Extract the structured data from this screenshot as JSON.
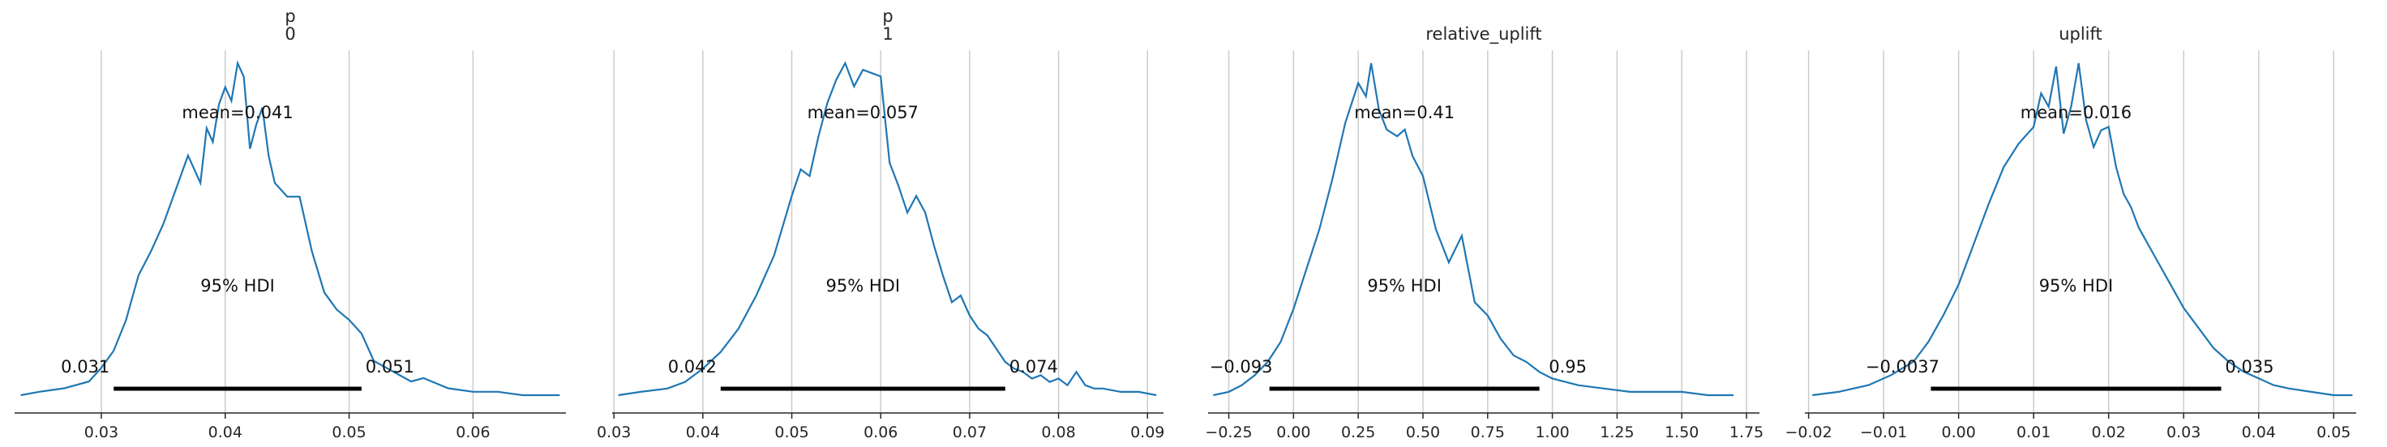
{
  "chart_data": [
    {
      "type": "area",
      "title_lines": [
        "p",
        "0"
      ],
      "xlim": [
        0.023,
        0.0675
      ],
      "xticks": [
        0.03,
        0.04,
        0.05,
        0.06
      ],
      "xtick_labels": [
        "0.03",
        "0.04",
        "0.05",
        "0.06"
      ],
      "mean_label": "mean=0.041",
      "hdi_label": "95% HDI",
      "hdi": [
        0.031,
        0.051
      ],
      "hdi_low_label": "0.031",
      "hdi_high_label": "0.051",
      "x": [
        0.0235,
        0.025,
        0.027,
        0.029,
        0.03,
        0.031,
        0.032,
        0.033,
        0.034,
        0.035,
        0.036,
        0.037,
        0.038,
        0.0385,
        0.039,
        0.0395,
        0.04,
        0.0405,
        0.041,
        0.0415,
        0.042,
        0.0425,
        0.043,
        0.0435,
        0.044,
        0.045,
        0.046,
        0.047,
        0.048,
        0.049,
        0.05,
        0.051,
        0.052,
        0.053,
        0.054,
        0.055,
        0.056,
        0.058,
        0.06,
        0.062,
        0.064,
        0.066,
        0.067
      ],
      "y": [
        0.0,
        0.01,
        0.02,
        0.04,
        0.08,
        0.13,
        0.22,
        0.35,
        0.42,
        0.5,
        0.6,
        0.7,
        0.62,
        0.78,
        0.74,
        0.85,
        0.9,
        0.86,
        0.97,
        0.93,
        0.72,
        0.79,
        0.84,
        0.7,
        0.62,
        0.58,
        0.58,
        0.42,
        0.3,
        0.25,
        0.22,
        0.18,
        0.1,
        0.08,
        0.06,
        0.04,
        0.05,
        0.02,
        0.01,
        0.01,
        0.0,
        0.0,
        0.0
      ]
    },
    {
      "type": "area",
      "title_lines": [
        "p",
        "1"
      ],
      "xlim": [
        0.0298,
        0.0918
      ],
      "xticks": [
        0.03,
        0.04,
        0.05,
        0.06,
        0.07,
        0.08,
        0.09
      ],
      "xtick_labels": [
        "0.03",
        "0.04",
        "0.05",
        "0.06",
        "0.07",
        "0.08",
        "0.09"
      ],
      "mean_label": "mean=0.057",
      "hdi_label": "95% HDI",
      "hdi": [
        0.042,
        0.074
      ],
      "hdi_low_label": "0.042",
      "hdi_high_label": "0.074",
      "x": [
        0.0305,
        0.033,
        0.036,
        0.038,
        0.04,
        0.042,
        0.044,
        0.046,
        0.048,
        0.05,
        0.051,
        0.052,
        0.053,
        0.054,
        0.055,
        0.056,
        0.057,
        0.058,
        0.059,
        0.06,
        0.061,
        0.062,
        0.063,
        0.064,
        0.065,
        0.066,
        0.067,
        0.068,
        0.069,
        0.07,
        0.071,
        0.072,
        0.073,
        0.074,
        0.075,
        0.076,
        0.077,
        0.078,
        0.079,
        0.08,
        0.081,
        0.082,
        0.083,
        0.084,
        0.085,
        0.087,
        0.089,
        0.091
      ],
      "y": [
        0.0,
        0.01,
        0.02,
        0.04,
        0.08,
        0.13,
        0.2,
        0.3,
        0.42,
        0.6,
        0.68,
        0.66,
        0.78,
        0.88,
        0.95,
        1.0,
        0.93,
        0.98,
        0.97,
        0.96,
        0.7,
        0.63,
        0.55,
        0.6,
        0.55,
        0.45,
        0.36,
        0.28,
        0.3,
        0.24,
        0.2,
        0.18,
        0.14,
        0.1,
        0.08,
        0.07,
        0.05,
        0.06,
        0.04,
        0.05,
        0.03,
        0.07,
        0.03,
        0.02,
        0.02,
        0.01,
        0.01,
        0.0
      ]
    },
    {
      "type": "area",
      "title_lines": [
        "relative_uplift"
      ],
      "xlim": [
        -0.33,
        1.8
      ],
      "xticks": [
        -0.25,
        0.0,
        0.25,
        0.5,
        0.75,
        1.0,
        1.25,
        1.5,
        1.75
      ],
      "xtick_labels": [
        "−0.25",
        "0.00",
        "0.25",
        "0.50",
        "0.75",
        "1.00",
        "1.25",
        "1.50",
        "1.75"
      ],
      "mean_label": "mean=0.41",
      "hdi_label": "95% HDI",
      "hdi": [
        -0.093,
        0.95
      ],
      "hdi_low_label": "−0.093",
      "hdi_high_label": "0.95",
      "x": [
        -0.31,
        -0.25,
        -0.2,
        -0.15,
        -0.1,
        -0.05,
        0.0,
        0.05,
        0.1,
        0.15,
        0.2,
        0.25,
        0.28,
        0.3,
        0.33,
        0.36,
        0.4,
        0.43,
        0.46,
        0.5,
        0.55,
        0.6,
        0.65,
        0.7,
        0.75,
        0.8,
        0.85,
        0.9,
        0.95,
        1.0,
        1.05,
        1.1,
        1.2,
        1.3,
        1.4,
        1.5,
        1.6,
        1.7
      ],
      "y": [
        0.0,
        0.01,
        0.03,
        0.06,
        0.1,
        0.16,
        0.26,
        0.38,
        0.5,
        0.65,
        0.82,
        0.94,
        0.9,
        1.0,
        0.86,
        0.8,
        0.78,
        0.8,
        0.72,
        0.66,
        0.5,
        0.4,
        0.48,
        0.28,
        0.24,
        0.17,
        0.12,
        0.1,
        0.07,
        0.05,
        0.04,
        0.03,
        0.02,
        0.01,
        0.01,
        0.01,
        0.0,
        0.0
      ]
    },
    {
      "type": "area",
      "title_lines": [
        "uplift"
      ],
      "xlim": [
        -0.0205,
        0.053
      ],
      "xticks": [
        -0.02,
        -0.01,
        0.0,
        0.01,
        0.02,
        0.03,
        0.04,
        0.05
      ],
      "xtick_labels": [
        "−0.02",
        "−0.01",
        "0.00",
        "0.01",
        "0.02",
        "0.03",
        "0.04",
        "0.05"
      ],
      "mean_label": "mean=0.016",
      "hdi_label": "95% HDI",
      "hdi": [
        -0.0037,
        0.035
      ],
      "hdi_low_label": "−0.0037",
      "hdi_high_label": "0.035",
      "x": [
        -0.0195,
        -0.016,
        -0.012,
        -0.009,
        -0.006,
        -0.004,
        -0.002,
        0.0,
        0.002,
        0.004,
        0.006,
        0.008,
        0.01,
        0.011,
        0.012,
        0.013,
        0.014,
        0.015,
        0.016,
        0.017,
        0.018,
        0.019,
        0.02,
        0.021,
        0.022,
        0.023,
        0.024,
        0.026,
        0.028,
        0.03,
        0.032,
        0.034,
        0.036,
        0.038,
        0.04,
        0.042,
        0.044,
        0.047,
        0.05,
        0.0525
      ],
      "y": [
        0.0,
        0.01,
        0.03,
        0.06,
        0.1,
        0.16,
        0.24,
        0.33,
        0.45,
        0.57,
        0.68,
        0.75,
        0.8,
        0.9,
        0.86,
        0.98,
        0.78,
        0.86,
        0.99,
        0.82,
        0.74,
        0.79,
        0.8,
        0.68,
        0.6,
        0.56,
        0.5,
        0.42,
        0.34,
        0.26,
        0.2,
        0.14,
        0.1,
        0.07,
        0.05,
        0.03,
        0.02,
        0.01,
        0.0,
        0.0
      ]
    }
  ]
}
